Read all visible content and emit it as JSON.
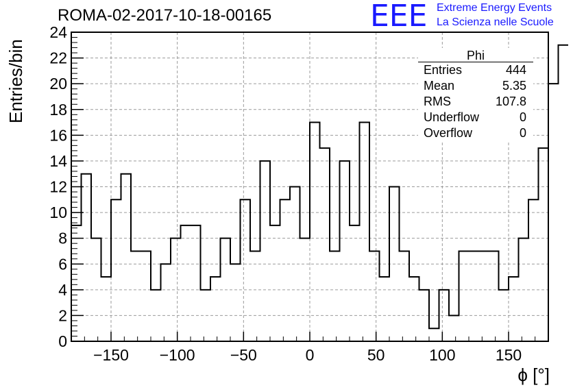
{
  "page_title": "ROMA-02-2017-10-18-00165",
  "logo": {
    "mark": "EEE",
    "line1": "Extreme Energy Events",
    "line2": "La Scienza nelle Scuole",
    "color": "#1a1aff"
  },
  "stats_box": {
    "title": "Phi",
    "rows": [
      {
        "key": "Entries",
        "value": "444"
      },
      {
        "key": "Mean",
        "value": "5.35"
      },
      {
        "key": "RMS",
        "value": "107.8"
      },
      {
        "key": "Underflow",
        "value": "0"
      },
      {
        "key": "Overflow",
        "value": "0"
      }
    ]
  },
  "chart_data": {
    "type": "histogram",
    "title": "ROMA-02-2017-10-18-00165",
    "xlabel": "ϕ [°]",
    "ylabel": "Entries/bin",
    "xlim": [
      -180,
      180
    ],
    "ylim": [
      0,
      24
    ],
    "bin_width": 7.5,
    "values": [
      9,
      13,
      8,
      5,
      11,
      13,
      7,
      7,
      4,
      6,
      8,
      9,
      9,
      4,
      5,
      8,
      6,
      11,
      7,
      14,
      9,
      11,
      12,
      8,
      17,
      15,
      7,
      14,
      9,
      17,
      7,
      5,
      12,
      7,
      5,
      4,
      1,
      4,
      2,
      7,
      7,
      7,
      7,
      4,
      5,
      8,
      11,
      15,
      20,
      23
    ],
    "x_ticks": [
      -150,
      -100,
      -50,
      0,
      50,
      100,
      150
    ],
    "x_tick_labels": [
      "−150",
      "−100",
      "−50",
      "0",
      "50",
      "100",
      "150"
    ],
    "y_ticks": [
      0,
      2,
      4,
      6,
      8,
      10,
      12,
      14,
      16,
      18,
      20,
      22,
      24
    ],
    "y_tick_labels": [
      "0",
      "2",
      "4",
      "6",
      "8",
      "10",
      "12",
      "14",
      "16",
      "18",
      "20",
      "22",
      "24"
    ],
    "grid": true,
    "line_color": "#000000",
    "grid_color": "#9a9a9a"
  }
}
